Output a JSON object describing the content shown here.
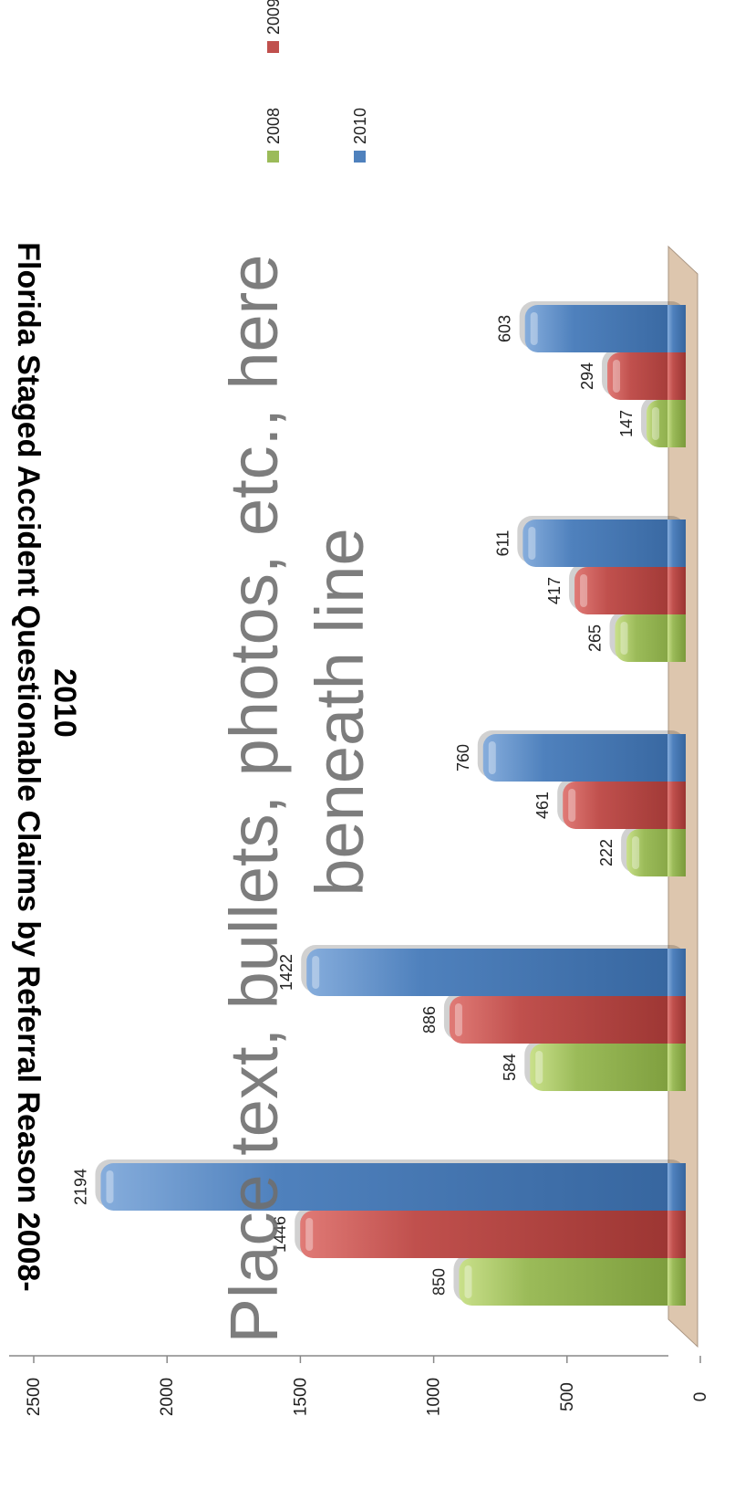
{
  "chart_data": {
    "type": "bar",
    "orientation": "rotated-90-clockwise",
    "title_lines": [
      "Florida Staged Accident Questionable Claims by Referral Reason 2008-",
      "2010"
    ],
    "categories": [
      "",
      "",
      "",
      "",
      ""
    ],
    "series": [
      {
        "name": "2008",
        "color": "#9bbb59",
        "values": [
          850,
          584,
          222,
          265,
          147
        ]
      },
      {
        "name": "2009",
        "color": "#c0504d",
        "values": [
          1446,
          886,
          461,
          417,
          294
        ]
      },
      {
        "name": "2010",
        "color": "#4f81bd",
        "values": [
          2194,
          1422,
          760,
          611,
          603
        ]
      }
    ],
    "ylim": [
      0,
      2500
    ],
    "yticks": [
      "0",
      "500",
      "1000",
      "1500",
      "2000",
      "2500"
    ],
    "legend_position": "top-right",
    "grid": false
  },
  "placeholder": {
    "line1": "Place text, bullets, photos, etc., here",
    "line2": "beneath line"
  }
}
